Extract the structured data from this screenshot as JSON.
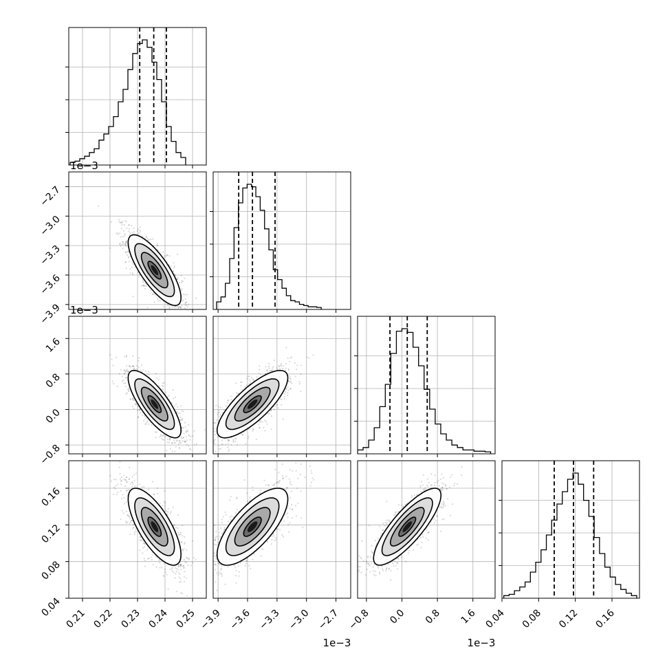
{
  "chart_data": {
    "type": "corner",
    "parameters": [
      {
        "range": [
          0.205,
          0.255
        ],
        "ticks": [
          0.21,
          0.22,
          0.23,
          0.24,
          0.25
        ],
        "tick_labels": [
          "0.21",
          "0.22",
          "0.23",
          "0.24",
          "0.25"
        ],
        "offset_text": ""
      },
      {
        "range": [
          -3.95,
          -2.55
        ],
        "ticks": [
          -3.9,
          -3.6,
          -3.3,
          -3.0,
          -2.7
        ],
        "tick_labels": [
          "−3.9",
          "−3.6",
          "−3.3",
          "−3.0",
          "−2.7"
        ],
        "offset_text": "1e−3"
      },
      {
        "range": [
          -1.0,
          2.1
        ],
        "ticks": [
          -0.8,
          0.0,
          0.8,
          1.6
        ],
        "tick_labels": [
          "−0.8",
          "0.0",
          "0.8",
          "1.6"
        ],
        "offset_text": "1e−3"
      },
      {
        "range": [
          0.04,
          0.19
        ],
        "ticks": [
          0.04,
          0.08,
          0.12,
          0.16
        ],
        "tick_labels": [
          "0.04",
          "0.08",
          "0.12",
          "0.16"
        ],
        "offset_text": ""
      }
    ],
    "means": [
      0.2362,
      -3.55,
      0.12,
      0.118
    ],
    "sigmas": [
      0.0048,
      0.18,
      0.38,
      0.021
    ],
    "histograms": [
      {
        "edges": [
          0.2055,
          0.2475
        ],
        "bins": 24,
        "counts": [
          0.01,
          0.02,
          0.04,
          0.06,
          0.09,
          0.12,
          0.19,
          0.24,
          0.3,
          0.38,
          0.5,
          0.6,
          0.76,
          0.89,
          0.97,
          1.0,
          0.94,
          0.82,
          0.68,
          0.5,
          0.3,
          0.18,
          0.09,
          0.05
        ],
        "quantiles": [
          0.2308,
          0.2359,
          0.2405
        ]
      },
      {
        "edges": [
          -3.915,
          -2.85
        ],
        "bins": 24,
        "counts": [
          0.05,
          0.09,
          0.2,
          0.4,
          0.65,
          0.85,
          0.97,
          1.0,
          0.98,
          0.9,
          0.79,
          0.64,
          0.47,
          0.31,
          0.23,
          0.16,
          0.1,
          0.06,
          0.05,
          0.03,
          0.02,
          0.01,
          0.01,
          0.005
        ],
        "quantiles": [
          -3.69,
          -3.55,
          -3.32
        ]
      },
      {
        "edges": [
          -1.0,
          2.0
        ],
        "bins": 24,
        "counts": [
          0.02,
          0.04,
          0.1,
          0.2,
          0.37,
          0.55,
          0.8,
          0.98,
          1.0,
          0.97,
          0.85,
          0.7,
          0.51,
          0.35,
          0.23,
          0.15,
          0.1,
          0.06,
          0.04,
          0.02,
          0.02,
          0.01,
          0.01,
          0.005
        ],
        "quantiles": [
          -0.27,
          0.12,
          0.57
        ]
      },
      {
        "edges": [
          0.042,
          0.187
        ],
        "bins": 25,
        "counts": [
          0.01,
          0.02,
          0.05,
          0.08,
          0.12,
          0.2,
          0.28,
          0.38,
          0.5,
          0.62,
          0.75,
          0.85,
          0.95,
          1.0,
          0.91,
          0.78,
          0.65,
          0.48,
          0.35,
          0.24,
          0.16,
          0.1,
          0.06,
          0.03,
          0.01
        ],
        "quantiles": [
          0.097,
          0.118,
          0.14
        ]
      }
    ],
    "correlations": [
      {
        "x": 0,
        "y": 1,
        "rho": -0.78
      },
      {
        "x": 0,
        "y": 2,
        "rho": -0.78
      },
      {
        "x": 1,
        "y": 2,
        "rho": 0.78
      },
      {
        "x": 0,
        "y": 3,
        "rho": -0.72
      },
      {
        "x": 1,
        "y": 3,
        "rho": 0.72
      },
      {
        "x": 2,
        "y": 3,
        "rho": 0.82
      }
    ],
    "contour_levels_sigma": [
      0.5,
      1.0,
      1.5,
      2.0
    ],
    "grid": true
  }
}
